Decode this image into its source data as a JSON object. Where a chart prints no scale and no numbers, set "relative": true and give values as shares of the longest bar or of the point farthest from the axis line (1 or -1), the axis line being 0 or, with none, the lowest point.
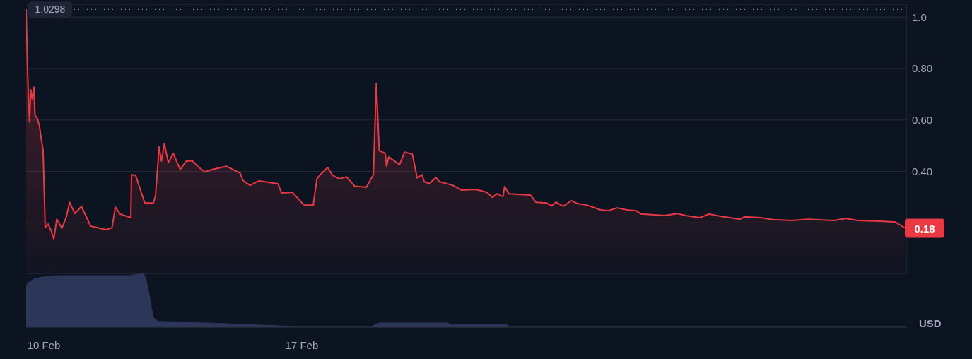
{
  "chart_data": [
    {
      "type": "area",
      "color": "#ea3943",
      "ylabel": "USD",
      "x": [
        "--02-09T12:30",
        "--02-09T13:25",
        "--02-09T14:40",
        "--02-09T15:35",
        "--02-09T16:35",
        "--02-09T17:30",
        "--02-09T18:15",
        "--02-09T19:40",
        "--02-09T21:05",
        "--02-09T22:20",
        "--02-09T23:30",
        "--02-10T00:55",
        "--02-10T02:55",
        "--02-10T05:00",
        "--02-10T06:30",
        "--02-10T08:25",
        "--02-10T11:45",
        "--02-10T14:40",
        "--02-10T16:50",
        "--02-10T20:10",
        "--02-11T00:30",
        "--02-11T06:30",
        "--02-11T16:35",
        "--02-11T20:25",
        "--02-11T22:35",
        "--02-12T01:40",
        "--02-12T08:40",
        "--02-12T09:05",
        "--02-12T11:45",
        "--02-12T14:40",
        "--02-12T17:45",
        "--02-12T23:15",
        "--02-13T00:45",
        "--02-13T03:05",
        "--02-13T04:35",
        "--02-13T06:30",
        "--02-13T09:05",
        "--02-13T12:15",
        "--02-13T16:50",
        "--02-13T20:40",
        "--02-14T00:30",
        "--02-14T05:45",
        "--02-14T08:55",
        "--02-14T13:25",
        "--02-14T22:50",
        "--02-15T07:55",
        "--02-15T09:35",
        "--02-15T14:10",
        "--02-15T20:10",
        "--02-16T08:25",
        "--02-16T10:50",
        "--02-16T17:45",
        "--02-17T01:25",
        "--02-17T07:25",
        "--02-17T09:50",
        "--02-17T12:00",
        "--02-17T16:50",
        "--02-17T19:55",
        "--02-18T00:30",
        "--02-18T05:00",
        "--02-18T10:20",
        "--02-18T18:00",
        "--02-18T21:05",
        "--02-18T22:35",
        "--02-19T00:30",
        "--02-19T02:25",
        "--02-19T06:15",
        "--02-19T07:10",
        "--02-19T08:40",
        "--02-19T15:35",
        "--02-19T18:55",
        "--02-20T00:00",
        "--02-20T03:05",
        "--02-20T06:15",
        "--02-20T07:40",
        "--02-20T10:50",
        "--02-20T15:20",
        "--02-20T17:30",
        "--02-21T02:10",
        "--02-21T08:10",
        "--02-21T17:15",
        "--02-22T00:15",
        "--02-22T04:05",
        "--02-22T07:10",
        "--02-22T11:00",
        "--02-22T12:00",
        "--02-22T14:55",
        "--02-23T04:50",
        "--02-23T08:25",
        "--02-23T15:20",
        "--02-23T18:30",
        "--02-23T21:35",
        "--02-24T02:10",
        "--02-24T07:25",
        "--02-24T11:15",
        "--02-24T17:30",
        "--02-25T02:40",
        "--02-25T07:25",
        "--02-25T13:25",
        "--02-25T19:40",
        "--02-26T01:40",
        "--02-26T04:50",
        "--02-26T20:10",
        "--02-27T04:35",
        "--02-27T09:50",
        "--02-27T19:10",
        "--02-28T01:10",
        "--02-28T06:00",
        "--02-28T21:20",
        "--03-01T00:15",
        "--03-01T11:00",
        "--03-01T18:45",
        "--03-02T06:55",
        "--03-02T17:45",
        "--03-03T10:35",
        "--03-03T18:15",
        "--03-04T01:55",
        "--03-04T17:15",
        "--03-05T02:25",
        "--03-05T08:40"
      ],
      "values": [
        1.03,
        0.791,
        0.593,
        0.717,
        0.681,
        0.728,
        0.618,
        0.607,
        0.58,
        0.525,
        0.484,
        0.181,
        0.195,
        0.165,
        0.137,
        0.214,
        0.179,
        0.223,
        0.28,
        0.236,
        0.264,
        0.187,
        0.173,
        0.181,
        0.261,
        0.234,
        0.22,
        0.387,
        0.385,
        0.332,
        0.277,
        0.277,
        0.305,
        0.495,
        0.44,
        0.508,
        0.434,
        0.47,
        0.407,
        0.44,
        0.442,
        0.412,
        0.398,
        0.407,
        0.42,
        0.393,
        0.365,
        0.346,
        0.363,
        0.352,
        0.316,
        0.319,
        0.269,
        0.269,
        0.371,
        0.387,
        0.415,
        0.385,
        0.371,
        0.379,
        0.343,
        0.338,
        0.371,
        0.387,
        0.742,
        0.481,
        0.47,
        0.42,
        0.456,
        0.426,
        0.475,
        0.467,
        0.374,
        0.387,
        0.36,
        0.352,
        0.376,
        0.36,
        0.346,
        0.327,
        0.33,
        0.319,
        0.299,
        0.313,
        0.302,
        0.341,
        0.313,
        0.308,
        0.28,
        0.277,
        0.266,
        0.28,
        0.264,
        0.286,
        0.275,
        0.269,
        0.25,
        0.247,
        0.258,
        0.25,
        0.247,
        0.234,
        0.228,
        0.236,
        0.228,
        0.22,
        0.234,
        0.228,
        0.214,
        0.223,
        0.22,
        0.212,
        0.209,
        0.214,
        0.209,
        0.217,
        0.209,
        0.206,
        0.203,
        0.18
      ],
      "xlim": [
        "--02-09T12:30",
        "--03-05T09:35"
      ],
      "ylim": [
        0,
        1.05
      ],
      "yticks": [
        {
          "value": 0,
          "label": null
        },
        {
          "value": 0.2,
          "label": null
        },
        {
          "value": 0.4,
          "label": "0.40"
        },
        {
          "value": 0.6,
          "label": "0.60"
        },
        {
          "value": 0.8,
          "label": "0.80"
        },
        {
          "value": 1,
          "label": "1.0"
        }
      ],
      "grid": "y",
      "tick_labels": "y",
      "ref_lines": [
        {
          "axis": "y",
          "value": 1.0298,
          "label": "1.0298",
          "line_style": "dotted",
          "color": "#a1a7bb"
        }
      ],
      "annotations": [
        {
          "text": "0.18",
          "x": "--03-05T08:40",
          "y": 0.18
        }
      ]
    },
    {
      "type": "area",
      "color": "#2b3659",
      "relative": true,
      "x": [
        "--02-09T12:30",
        "--02-09T13:10",
        "--02-09T17:45",
        "--02-09T22:20",
        "--02-10T08:25",
        "--02-12T07:55",
        "--02-12T09:20",
        "--02-12T17:00",
        "--02-12T18:45",
        "--02-12T20:55",
        "--02-12T23:15",
        "--02-13T02:10",
        "--02-13T12:55",
        "--02-14T18:15",
        "--02-15T21:50",
        "--02-16T13:10",
        "--02-16T17:45",
        "--02-18T21:05",
        "--02-18T23:15",
        "--02-19T02:25",
        "--02-20T23:05",
        "--02-21T00:45",
        "--02-22T13:25",
        "--02-22T14:55",
        "--03-05T08:40"
      ],
      "values": [
        0.74,
        0.81,
        0.9,
        0.93,
        0.96,
        0.96,
        0.97,
        1,
        0.875,
        0.56,
        0.18,
        0.11,
        0.1,
        0.07,
        0.04,
        0.02,
        0,
        0,
        0.04,
        0.08,
        0.08,
        0.05,
        0.05,
        0,
        0
      ],
      "xlim": [
        "--02-09T12:30",
        "--03-05T09:35"
      ],
      "xticks": [
        {
          "value": "--02-10",
          "label": "10 Feb"
        },
        {
          "value": "--02-17",
          "label": "17 Feb"
        }
      ],
      "tick_labels": "x"
    }
  ]
}
